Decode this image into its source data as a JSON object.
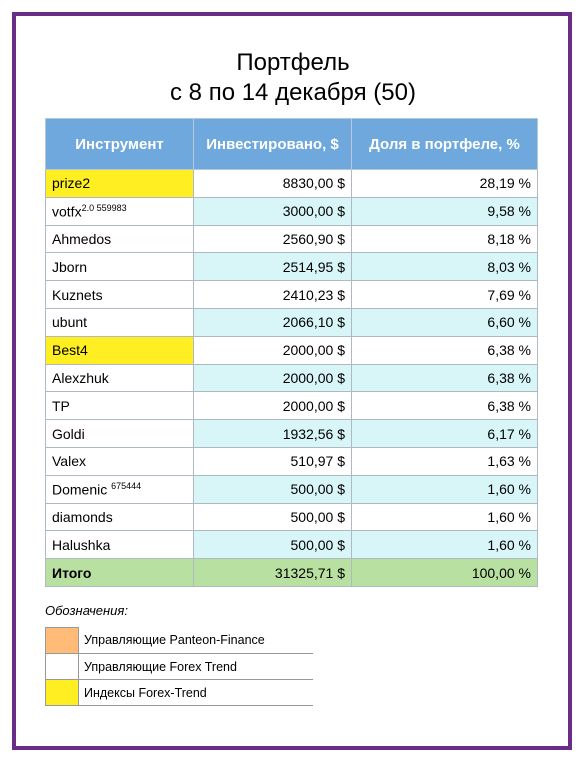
{
  "title_line1": "Портфель",
  "title_line2": "с 8 по 14 декабря (50)",
  "headers": [
    "Инструмент",
    "Инвестировано, $",
    "Доля в портфеле, %"
  ],
  "rows": [
    {
      "name": "prize2",
      "sup": "",
      "invested": "8830,00 $",
      "share": "28,19 %",
      "highlight": "idx"
    },
    {
      "name": "votfx",
      "sup": "2.0 559983",
      "invested": "3000,00 $",
      "share": "9,58 %",
      "highlight": ""
    },
    {
      "name": "Ahmedos",
      "sup": "",
      "invested": "2560,90 $",
      "share": "8,18 %",
      "highlight": ""
    },
    {
      "name": "Jborn",
      "sup": "",
      "invested": "2514,95 $",
      "share": "8,03 %",
      "highlight": ""
    },
    {
      "name": "Kuznets",
      "sup": "",
      "invested": "2410,23 $",
      "share": "7,69 %",
      "highlight": ""
    },
    {
      "name": "ubunt",
      "sup": "",
      "invested": "2066,10 $",
      "share": "6,60 %",
      "highlight": ""
    },
    {
      "name": "Best4",
      "sup": "",
      "invested": "2000,00 $",
      "share": "6,38 %",
      "highlight": "idx"
    },
    {
      "name": "Alexzhuk",
      "sup": "",
      "invested": "2000,00 $",
      "share": "6,38 %",
      "highlight": ""
    },
    {
      "name": "TP",
      "sup": "",
      "invested": "2000,00 $",
      "share": "6,38 %",
      "highlight": ""
    },
    {
      "name": "Goldi",
      "sup": "",
      "invested": "1932,56 $",
      "share": "6,17 %",
      "highlight": ""
    },
    {
      "name": "Valex",
      "sup": "",
      "invested": "510,97 $",
      "share": "1,63 %",
      "highlight": ""
    },
    {
      "name": "Domenic ",
      "sup": "675444",
      "invested": "500,00 $",
      "share": "1,60 %",
      "highlight": ""
    },
    {
      "name": "diamonds",
      "sup": "",
      "invested": "500,00 $",
      "share": "1,60 %",
      "highlight": ""
    },
    {
      "name": "Halushka",
      "sup": "",
      "invested": "500,00 $",
      "share": "1,60 %",
      "highlight": ""
    }
  ],
  "total": {
    "name": "Итого",
    "invested": "31325,71 $",
    "share": "100,00 %"
  },
  "legend_title": "Обозначения:",
  "legend": [
    {
      "label": "Управляющие Panteon-Finance",
      "color": "#ffbb77"
    },
    {
      "label": "Управляющие Forex Trend",
      "color": "#ffffff"
    },
    {
      "label": "Индексы Forex-Trend",
      "color": "#ffee22"
    }
  ],
  "colors": {
    "header": "#6fa8dc",
    "alt_row": "#d8f5f7",
    "total": "#b8e0a0",
    "frame": "#6a2c87"
  }
}
